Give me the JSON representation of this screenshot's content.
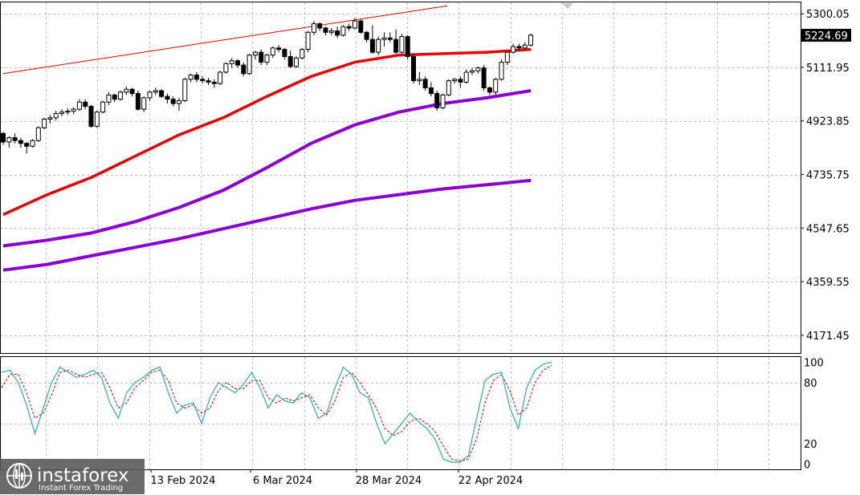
{
  "chart_data": [
    {
      "type": "candlestick",
      "title": "",
      "y_ticks": [
        5300.05,
        5111.95,
        4923.85,
        4735.75,
        4547.65,
        4359.55,
        4171.45
      ],
      "ylim": [
        4109,
        5340
      ],
      "current_price": "5224.69",
      "x_tick_labels": [
        "13 Feb 2024",
        "6 Mar 2024",
        "28 Mar 2024",
        "22 Apr 2024"
      ],
      "grid": true,
      "colors": {
        "up_candle": "#ffffff",
        "down_candle": "#000000",
        "ma_fast": "#e80000",
        "ma_slow": "#8a00d4",
        "trendline": "#e00000"
      },
      "candles": [
        [
          4880,
          4885,
          4840,
          4850
        ],
        [
          4850,
          4870,
          4830,
          4865
        ],
        [
          4865,
          4880,
          4845,
          4855
        ],
        [
          4855,
          4865,
          4830,
          4845
        ],
        [
          4845,
          4850,
          4810,
          4835
        ],
        [
          4835,
          4860,
          4830,
          4855
        ],
        [
          4855,
          4905,
          4850,
          4900
        ],
        [
          4900,
          4935,
          4895,
          4930
        ],
        [
          4930,
          4945,
          4915,
          4935
        ],
        [
          4935,
          4960,
          4925,
          4950
        ],
        [
          4950,
          4965,
          4940,
          4955
        ],
        [
          4955,
          4968,
          4945,
          4958
        ],
        [
          4958,
          4972,
          4948,
          4965
        ],
        [
          4965,
          5000,
          4960,
          4990
        ],
        [
          4990,
          5000,
          4965,
          4975
        ],
        [
          4975,
          4980,
          4900,
          4905
        ],
        [
          4905,
          4960,
          4900,
          4955
        ],
        [
          4955,
          4995,
          4950,
          4990
        ],
        [
          4990,
          5025,
          4980,
          5015
        ],
        [
          5015,
          5020,
          4990,
          5000
        ],
        [
          5000,
          5030,
          4995,
          5025
        ],
        [
          5025,
          5045,
          5015,
          5035
        ],
        [
          5035,
          5040,
          5010,
          5020
        ],
        [
          5020,
          5030,
          4960,
          4965
        ],
        [
          4965,
          5010,
          4955,
          5005
        ],
        [
          5005,
          5030,
          4995,
          5025
        ],
        [
          5025,
          5040,
          5015,
          5030
        ],
        [
          5030,
          5035,
          5005,
          5010
        ],
        [
          5010,
          5020,
          4985,
          5000
        ],
        [
          5000,
          5010,
          4975,
          4985
        ],
        [
          4985,
          5005,
          4960,
          4995
        ],
        [
          4995,
          5075,
          4990,
          5070
        ],
        [
          5070,
          5090,
          5060,
          5085
        ],
        [
          5085,
          5095,
          5060,
          5070
        ],
        [
          5070,
          5080,
          5055,
          5065
        ],
        [
          5065,
          5075,
          5050,
          5060
        ],
        [
          5060,
          5070,
          5040,
          5055
        ],
        [
          5055,
          5100,
          5050,
          5095
        ],
        [
          5095,
          5130,
          5090,
          5125
        ],
        [
          5125,
          5145,
          5110,
          5135
        ],
        [
          5135,
          5140,
          5110,
          5120
        ],
        [
          5120,
          5130,
          5080,
          5090
        ],
        [
          5090,
          5160,
          5085,
          5155
        ],
        [
          5155,
          5170,
          5140,
          5165
        ],
        [
          5165,
          5175,
          5120,
          5130
        ],
        [
          5130,
          5160,
          5120,
          5155
        ],
        [
          5155,
          5185,
          5145,
          5180
        ],
        [
          5180,
          5190,
          5165,
          5175
        ],
        [
          5175,
          5180,
          5140,
          5150
        ],
        [
          5150,
          5170,
          5110,
          5115
        ],
        [
          5115,
          5150,
          5110,
          5145
        ],
        [
          5145,
          5180,
          5140,
          5175
        ],
        [
          5175,
          5240,
          5165,
          5235
        ],
        [
          5235,
          5275,
          5225,
          5265
        ],
        [
          5265,
          5270,
          5240,
          5250
        ],
        [
          5250,
          5255,
          5225,
          5235
        ],
        [
          5235,
          5250,
          5225,
          5240
        ],
        [
          5240,
          5255,
          5215,
          5225
        ],
        [
          5225,
          5260,
          5220,
          5255
        ],
        [
          5255,
          5265,
          5240,
          5250
        ],
        [
          5250,
          5285,
          5245,
          5275
        ],
        [
          5275,
          5280,
          5230,
          5235
        ],
        [
          5235,
          5240,
          5200,
          5210
        ],
        [
          5210,
          5260,
          5160,
          5165
        ],
        [
          5165,
          5220,
          5155,
          5210
        ],
        [
          5210,
          5235,
          5185,
          5215
        ],
        [
          5215,
          5235,
          5200,
          5210
        ],
        [
          5210,
          5245,
          5160,
          5165
        ],
        [
          5165,
          5230,
          5160,
          5220
        ],
        [
          5220,
          5225,
          5140,
          5150
        ],
        [
          5150,
          5160,
          5055,
          5065
        ],
        [
          5065,
          5095,
          5050,
          5070
        ],
        [
          5070,
          5080,
          5030,
          5040
        ],
        [
          5040,
          5060,
          5010,
          5020
        ],
        [
          5020,
          5030,
          4960,
          4970
        ],
        [
          4970,
          5020,
          4965,
          5015
        ],
        [
          5015,
          5070,
          5010,
          5065
        ],
        [
          5065,
          5075,
          5055,
          5070
        ],
        [
          5070,
          5080,
          5040,
          5060
        ],
        [
          5060,
          5105,
          5055,
          5095
        ],
        [
          5095,
          5110,
          5085,
          5100
        ],
        [
          5100,
          5115,
          5090,
          5110
        ],
        [
          5110,
          5120,
          5030,
          5040
        ],
        [
          5040,
          5045,
          5015,
          5025
        ],
        [
          5025,
          5075,
          5015,
          5070
        ],
        [
          5070,
          5140,
          5065,
          5130
        ],
        [
          5130,
          5170,
          5120,
          5165
        ],
        [
          5165,
          5195,
          5160,
          5185
        ],
        [
          5185,
          5195,
          5170,
          5180
        ],
        [
          5180,
          5200,
          5175,
          5190
        ],
        [
          5190,
          5230,
          5185,
          5225
        ]
      ],
      "ma_fast_points": [
        [
          0,
          4595
        ],
        [
          10,
          4665
        ],
        [
          20,
          4725
        ],
        [
          30,
          4800
        ],
        [
          40,
          4875
        ],
        [
          50,
          4935
        ],
        [
          60,
          5010
        ],
        [
          70,
          5080
        ],
        [
          80,
          5130
        ],
        [
          90,
          5155
        ],
        [
          100,
          5160
        ],
        [
          110,
          5165
        ],
        [
          120,
          5175
        ]
      ],
      "ma_mid_points": [
        [
          0,
          4485
        ],
        [
          10,
          4505
        ],
        [
          20,
          4530
        ],
        [
          30,
          4570
        ],
        [
          40,
          4620
        ],
        [
          50,
          4680
        ],
        [
          60,
          4760
        ],
        [
          70,
          4845
        ],
        [
          80,
          4910
        ],
        [
          90,
          4955
        ],
        [
          100,
          4985
        ],
        [
          110,
          5005
        ],
        [
          120,
          5030
        ]
      ],
      "ma_slow_points": [
        [
          0,
          4400
        ],
        [
          10,
          4420
        ],
        [
          20,
          4450
        ],
        [
          30,
          4480
        ],
        [
          40,
          4510
        ],
        [
          50,
          4545
        ],
        [
          60,
          4580
        ],
        [
          70,
          4615
        ],
        [
          80,
          4645
        ],
        [
          90,
          4665
        ],
        [
          100,
          4685
        ],
        [
          110,
          4700
        ],
        [
          120,
          4715
        ]
      ],
      "trendline_points": [
        [
          0,
          5090
        ],
        [
          101,
          5328
        ]
      ]
    },
    {
      "type": "line",
      "ylim": [
        -5,
        105
      ],
      "y_ticks": [
        100,
        80,
        20,
        0
      ],
      "series": [
        {
          "values": [
            90,
            92,
            80,
            58,
            30,
            55,
            80,
            95,
            90,
            85,
            88,
            92,
            85,
            60,
            45,
            70,
            80,
            85,
            92,
            95,
            70,
            50,
            58,
            60,
            40,
            65,
            80,
            75,
            70,
            78,
            90,
            75,
            55,
            68,
            62,
            60,
            70,
            65,
            45,
            50,
            75,
            95,
            88,
            70,
            65,
            40,
            20,
            30,
            40,
            50,
            42,
            35,
            25,
            5,
            2,
            2,
            8,
            45,
            82,
            88,
            90,
            55,
            35,
            75,
            92,
            98,
            100
          ]
        },
        {
          "values": [
            75,
            88,
            88,
            70,
            45,
            50,
            68,
            90,
            92,
            88,
            85,
            88,
            90,
            75,
            55,
            60,
            75,
            82,
            90,
            92,
            82,
            60,
            55,
            58,
            50,
            55,
            72,
            80,
            74,
            74,
            82,
            82,
            65,
            60,
            65,
            62,
            65,
            68,
            55,
            48,
            62,
            85,
            90,
            80,
            68,
            55,
            35,
            28,
            32,
            42,
            45,
            40,
            32,
            18,
            5,
            3,
            5,
            25,
            60,
            82,
            88,
            72,
            48,
            55,
            80,
            92,
            97
          ]
        }
      ]
    }
  ],
  "logo": {
    "brand": "instaforex",
    "tagline": "Instant Forex Trading"
  }
}
